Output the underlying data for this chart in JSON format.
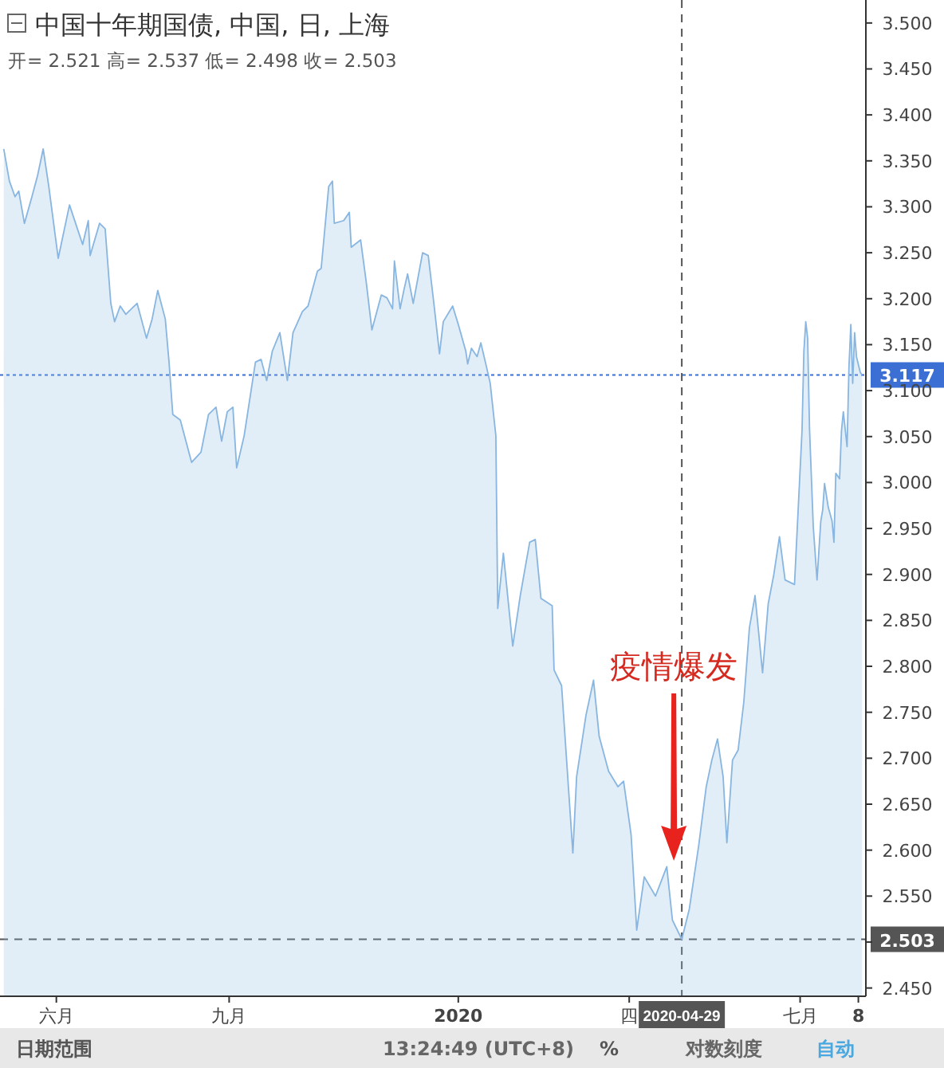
{
  "chart_data": {
    "type": "area",
    "title": "中国十年期国债, 中国, 日, 上海",
    "subtitle": "开= 2.521  高= 2.537  低= 2.498  收= 2.503",
    "x": [
      "2019-05-04",
      "2019-05-07",
      "2019-05-10",
      "2019-05-12",
      "2019-05-15",
      "2019-05-19",
      "2019-05-22",
      "2019-05-25",
      "2019-05-28",
      "2019-06-02",
      "2019-06-08",
      "2019-06-15",
      "2019-06-18",
      "2019-06-19",
      "2019-06-24",
      "2019-06-27",
      "2019-06-30",
      "2019-07-02",
      "2019-07-05",
      "2019-07-08",
      "2019-07-11",
      "2019-07-14",
      "2019-07-19",
      "2019-07-22",
      "2019-07-25",
      "2019-07-29",
      "2019-07-31",
      "2019-08-02",
      "2019-08-06",
      "2019-08-12",
      "2019-08-17",
      "2019-08-21",
      "2019-08-25",
      "2019-08-28",
      "2019-08-31",
      "2019-09-03",
      "2019-09-05",
      "2019-09-09",
      "2019-09-15",
      "2019-09-18",
      "2019-09-21",
      "2019-09-24",
      "2019-09-28",
      "2019-10-02",
      "2019-10-05",
      "2019-10-10",
      "2019-10-13",
      "2019-10-18",
      "2019-10-20",
      "2019-10-24",
      "2019-10-26",
      "2019-10-27",
      "2019-11-01",
      "2019-11-04",
      "2019-11-05",
      "2019-11-10",
      "2019-11-13",
      "2019-11-16",
      "2019-11-21",
      "2019-11-24",
      "2019-11-27",
      "2019-11-28",
      "2019-12-01",
      "2019-12-03",
      "2019-12-05",
      "2019-12-08",
      "2019-12-13",
      "2019-12-16",
      "2019-12-19",
      "2019-12-22",
      "2019-12-24",
      "2019-12-29",
      "2020-01-01",
      "2020-01-05",
      "2020-01-06",
      "2020-01-08",
      "2020-01-11",
      "2020-01-13",
      "2020-01-16",
      "2020-01-18",
      "2020-01-21",
      "2020-01-22",
      "2020-01-25",
      "2020-01-30",
      "2020-02-03",
      "2020-02-08",
      "2020-02-11",
      "2020-02-14",
      "2020-02-20",
      "2020-02-21",
      "2020-02-25",
      "2020-03-02",
      "2020-03-04",
      "2020-03-09",
      "2020-03-13",
      "2020-03-16",
      "2020-03-21",
      "2020-03-26",
      "2020-03-29",
      "2020-04-02",
      "2020-04-05",
      "2020-04-09",
      "2020-04-15",
      "2020-04-21",
      "2020-04-24",
      "2020-04-29",
      "2020-05-03",
      "2020-05-08",
      "2020-05-12",
      "2020-05-15",
      "2020-05-18",
      "2020-05-21",
      "2020-05-23",
      "2020-05-26",
      "2020-05-29",
      "2020-06-01",
      "2020-06-04",
      "2020-06-07",
      "2020-06-11",
      "2020-06-14",
      "2020-06-17",
      "2020-06-20",
      "2020-06-23",
      "2020-06-28",
      "2020-07-02",
      "2020-07-03",
      "2020-07-04",
      "2020-07-05",
      "2020-07-06",
      "2020-07-08",
      "2020-07-10",
      "2020-07-12",
      "2020-07-13",
      "2020-07-14",
      "2020-07-16",
      "2020-07-18",
      "2020-07-19",
      "2020-07-20",
      "2020-07-22",
      "2020-07-23",
      "2020-07-24",
      "2020-07-26",
      "2020-07-27",
      "2020-07-28",
      "2020-07-29",
      "2020-07-30",
      "2020-07-31",
      "2020-08-02",
      "2020-08-03"
    ],
    "series": [
      {
        "color": "#88b6e0",
        "values": [
          3.363,
          3.328,
          3.311,
          3.317,
          3.282,
          3.311,
          3.334,
          3.363,
          3.322,
          3.244,
          3.302,
          3.259,
          3.285,
          3.247,
          3.282,
          3.276,
          3.195,
          3.175,
          3.192,
          3.183,
          3.189,
          3.195,
          3.157,
          3.178,
          3.209,
          3.178,
          3.131,
          3.074,
          3.068,
          3.022,
          3.033,
          3.074,
          3.082,
          3.045,
          3.077,
          3.082,
          3.016,
          3.051,
          3.131,
          3.134,
          3.111,
          3.143,
          3.163,
          3.111,
          3.163,
          3.186,
          3.192,
          3.23,
          3.233,
          3.322,
          3.328,
          3.282,
          3.285,
          3.294,
          3.256,
          3.264,
          3.218,
          3.166,
          3.204,
          3.201,
          3.189,
          3.241,
          3.189,
          3.209,
          3.227,
          3.195,
          3.25,
          3.247,
          3.195,
          3.14,
          3.175,
          3.192,
          3.172,
          3.143,
          3.129,
          3.146,
          3.137,
          3.152,
          3.126,
          3.108,
          3.051,
          2.863,
          2.923,
          2.822,
          2.877,
          2.935,
          2.938,
          2.874,
          2.866,
          2.796,
          2.779,
          2.597,
          2.68,
          2.747,
          2.785,
          2.724,
          2.686,
          2.669,
          2.675,
          2.617,
          2.513,
          2.571,
          2.55,
          2.582,
          2.524,
          2.503,
          2.536,
          2.605,
          2.669,
          2.698,
          2.721,
          2.68,
          2.608,
          2.698,
          2.709,
          2.761,
          2.842,
          2.877,
          2.793,
          2.868,
          2.9,
          2.941,
          2.894,
          2.889,
          3.056,
          3.143,
          3.175,
          3.157,
          3.059,
          2.952,
          2.894,
          2.958,
          2.97,
          2.999,
          2.973,
          2.958,
          2.935,
          3.01,
          3.004,
          3.056,
          3.077,
          3.039,
          3.126,
          3.172,
          3.108,
          3.163,
          3.137,
          3.12,
          3.117
        ]
      }
    ],
    "xlim": [
      "2019-05-02",
      "2020-08-05"
    ],
    "xticks": [
      {
        "value": "2019-06-01",
        "label": "六月"
      },
      {
        "value": "2019-09-01",
        "label": "九月"
      },
      {
        "value": "2020-01-01",
        "label": "2020"
      },
      {
        "value": "2020-04-01",
        "label": "四"
      },
      {
        "value": "2020-07-01",
        "label": "七月"
      },
      {
        "value": "2020-08-01",
        "label": "8"
      }
    ],
    "ylim": [
      2.441,
      3.525
    ],
    "yticks": [
      {
        "value": 2.45,
        "label": "2.450"
      },
      {
        "value": 2.5,
        "label": null
      },
      {
        "value": 2.55,
        "label": "2.550"
      },
      {
        "value": 2.6,
        "label": "2.600"
      },
      {
        "value": 2.65,
        "label": "2.650"
      },
      {
        "value": 2.7,
        "label": "2.700"
      },
      {
        "value": 2.75,
        "label": "2.750"
      },
      {
        "value": 2.8,
        "label": "2.800"
      },
      {
        "value": 2.85,
        "label": "2.850"
      },
      {
        "value": 2.9,
        "label": "2.900"
      },
      {
        "value": 2.95,
        "label": "2.950"
      },
      {
        "value": 3.0,
        "label": "3.000"
      },
      {
        "value": 3.05,
        "label": "3.050"
      },
      {
        "value": 3.1,
        "label": "3.100"
      },
      {
        "value": 3.15,
        "label": "3.150"
      },
      {
        "value": 3.2,
        "label": "3.200"
      },
      {
        "value": 3.25,
        "label": "3.250"
      },
      {
        "value": 3.3,
        "label": "3.300"
      },
      {
        "value": 3.35,
        "label": "3.350"
      },
      {
        "value": 3.4,
        "label": "3.400"
      },
      {
        "value": 3.45,
        "label": "3.450"
      },
      {
        "value": 3.5,
        "label": "3.500"
      }
    ],
    "ref_lines": [
      {
        "axis": "y",
        "value": 3.117,
        "label": "3.117",
        "color": "#3b6fd4",
        "line_style": "dotted"
      },
      {
        "axis": "y",
        "value": 2.503,
        "label": "2.503",
        "color": "#555555",
        "line_style": "dashed"
      },
      {
        "axis": "x",
        "value": "2020-04-29",
        "label": "2020-04-29",
        "color": "#555555",
        "line_style": "dashed"
      }
    ],
    "annotations": [
      "疫情爆发",
      "日期范围",
      "13:24:49 (UTC+8)",
      "%",
      "对数刻度",
      "自动"
    ],
    "grid": false,
    "marker": "none",
    "line_style": "solid"
  }
}
